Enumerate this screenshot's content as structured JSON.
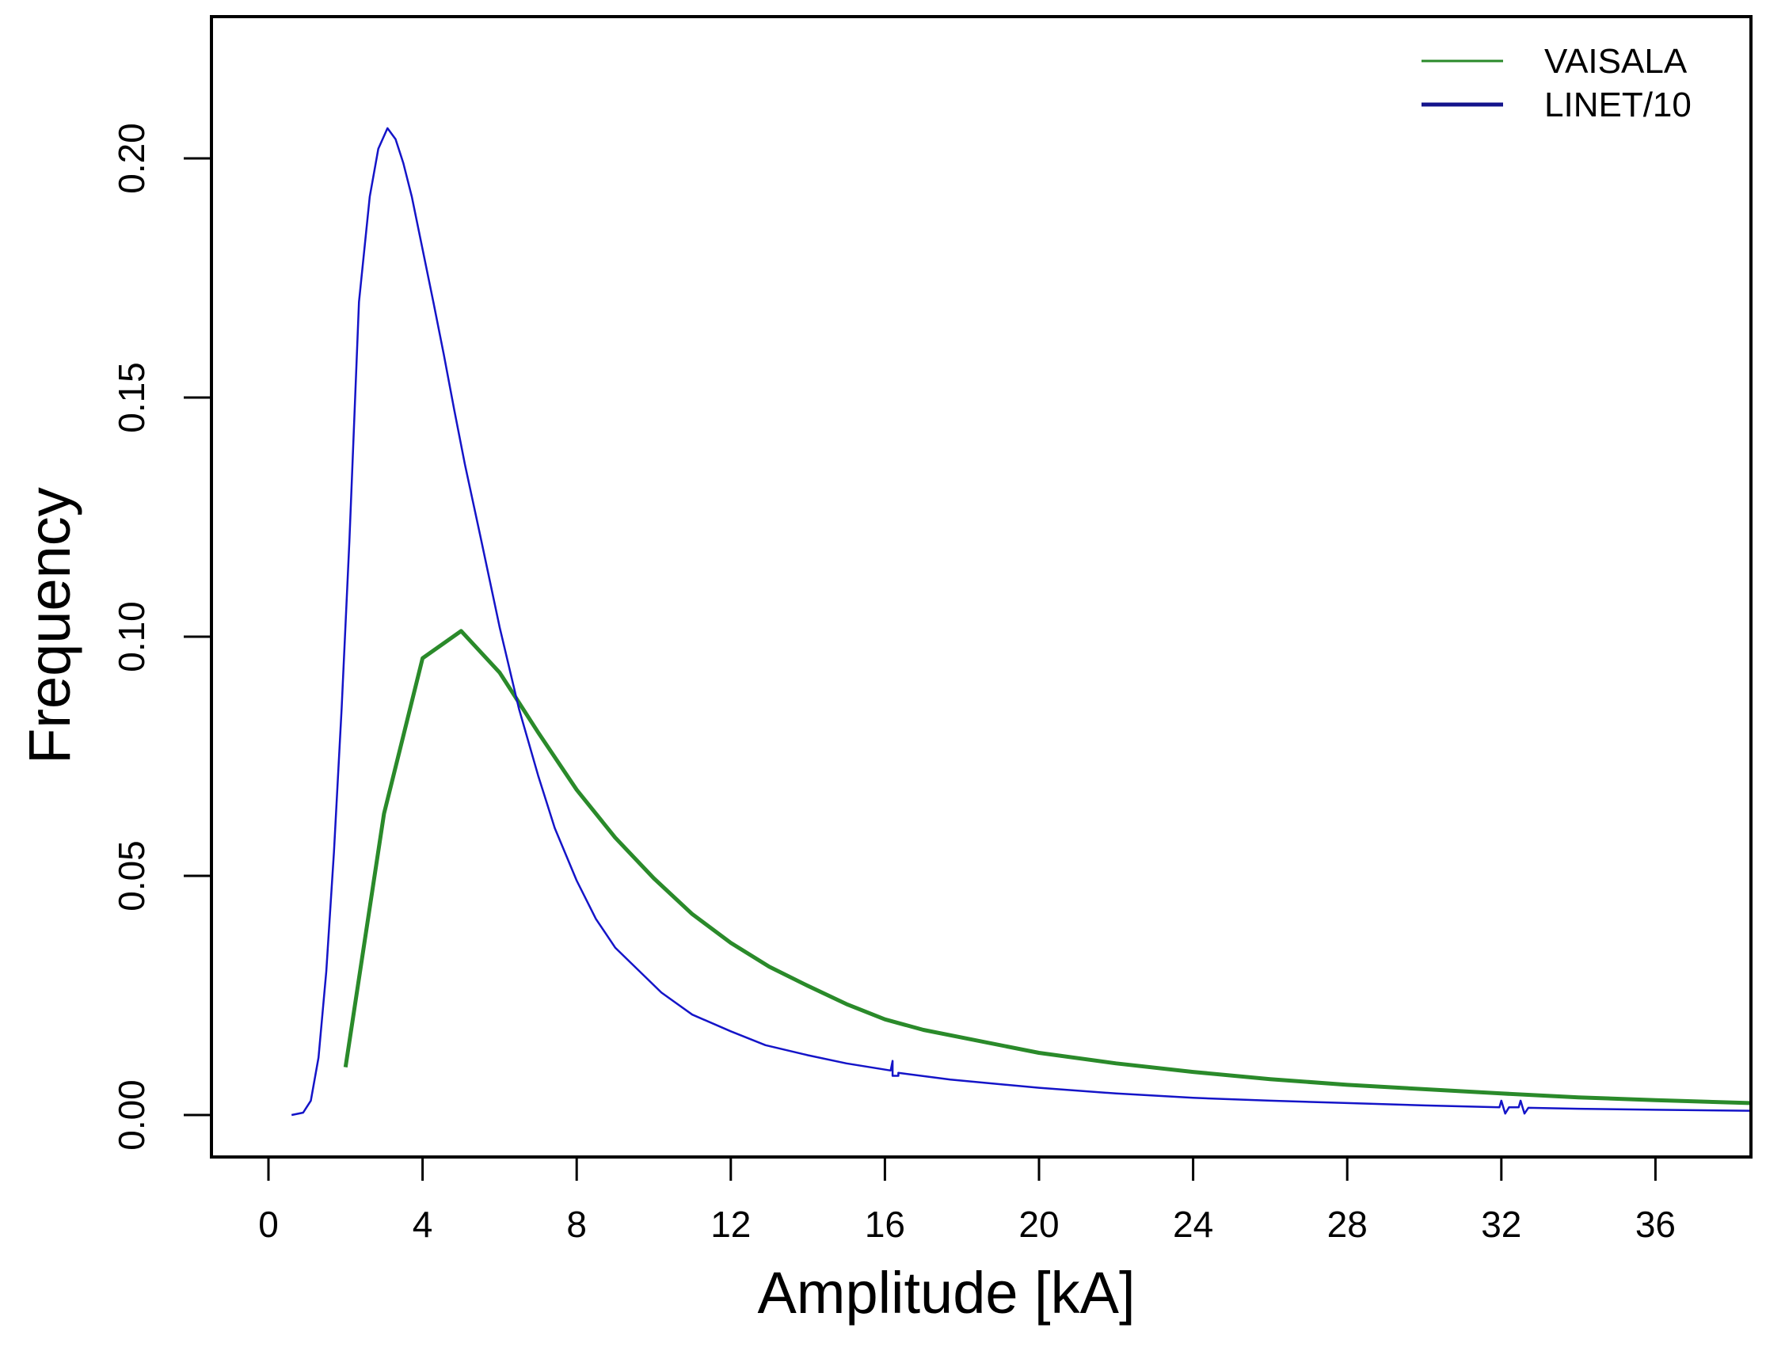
{
  "chart_data": {
    "type": "line",
    "title": "",
    "xlabel": "Amplitude [kA]",
    "ylabel": "Frequency",
    "xlim": [
      -1.5,
      38.5
    ],
    "ylim": [
      -0.0088,
      0.2283
    ],
    "x_ticks": [
      0,
      4,
      8,
      12,
      16,
      20,
      24,
      28,
      32,
      36
    ],
    "x_tick_labels": [
      "0",
      "4",
      "8",
      "12",
      "16",
      "20",
      "24",
      "28",
      "32",
      "36"
    ],
    "y_ticks": [
      0.0,
      0.05,
      0.1,
      0.15,
      0.2
    ],
    "y_tick_labels": [
      "0.00",
      "0.05",
      "0.10",
      "0.15",
      "0.20"
    ],
    "grid": false,
    "legend_position": "top-right",
    "series": [
      {
        "name": "VAISALA",
        "color": "#2a8a2a",
        "line_width": 5,
        "x": [
          2,
          3,
          4,
          5,
          6,
          7,
          8,
          9,
          10,
          11,
          12,
          13,
          14,
          15,
          16,
          17,
          18,
          20,
          22,
          24,
          26,
          28,
          30,
          32,
          34,
          36,
          38.5
        ],
        "values": [
          0.01,
          0.063,
          0.0955,
          0.1012,
          0.0925,
          0.08,
          0.068,
          0.058,
          0.0495,
          0.042,
          0.036,
          0.031,
          0.027,
          0.0232,
          0.02,
          0.0178,
          0.0162,
          0.013,
          0.0108,
          0.009,
          0.0075,
          0.0063,
          0.0054,
          0.0045,
          0.0037,
          0.0031,
          0.0025
        ]
      },
      {
        "name": "LINET/10",
        "color": "#1414c8",
        "line_width": 2.5,
        "x": [
          0.6,
          0.9,
          1.1,
          1.3,
          1.5,
          1.7,
          1.9,
          2.1,
          2.35,
          2.63,
          2.85,
          3.09,
          3.3,
          3.5,
          3.72,
          4.0,
          4.28,
          4.55,
          4.82,
          5.1,
          5.5,
          6.0,
          6.5,
          7.0,
          7.43,
          8.0,
          8.5,
          9.0,
          10.2,
          11.0,
          12.0,
          12.9,
          14.0,
          15.0,
          16.15,
          16.2,
          16.2,
          16.35,
          16.35,
          17.7,
          20.0,
          22.0,
          24.0,
          26.0,
          28.0,
          30.0,
          31.95,
          32.0,
          32.1,
          32.2,
          32.45,
          32.5,
          32.6,
          32.7,
          34.0,
          36.0,
          38.5
        ],
        "values": [
          0.0,
          0.0005,
          0.003,
          0.012,
          0.03,
          0.055,
          0.085,
          0.12,
          0.17,
          0.192,
          0.202,
          0.2063,
          0.204,
          0.199,
          0.192,
          0.181,
          0.17,
          0.159,
          0.1475,
          0.136,
          0.121,
          0.102,
          0.085,
          0.071,
          0.06,
          0.049,
          0.041,
          0.035,
          0.0256,
          0.021,
          0.0175,
          0.0146,
          0.0125,
          0.0108,
          0.0093,
          0.0113,
          0.0082,
          0.0082,
          0.0088,
          0.0074,
          0.0057,
          0.0045,
          0.0036,
          0.003,
          0.0025,
          0.002,
          0.0016,
          0.003,
          0.0003,
          0.0016,
          0.0016,
          0.003,
          0.0003,
          0.0015,
          0.0013,
          0.0011,
          0.0009
        ]
      }
    ]
  },
  "legend": {
    "items": [
      {
        "label": "VAISALA",
        "color": "#2a8a2a"
      },
      {
        "label": "LINET/10",
        "color": "#14148c"
      }
    ]
  },
  "axes": {
    "xlabel": "Amplitude [kA]",
    "ylabel": "Frequency"
  }
}
